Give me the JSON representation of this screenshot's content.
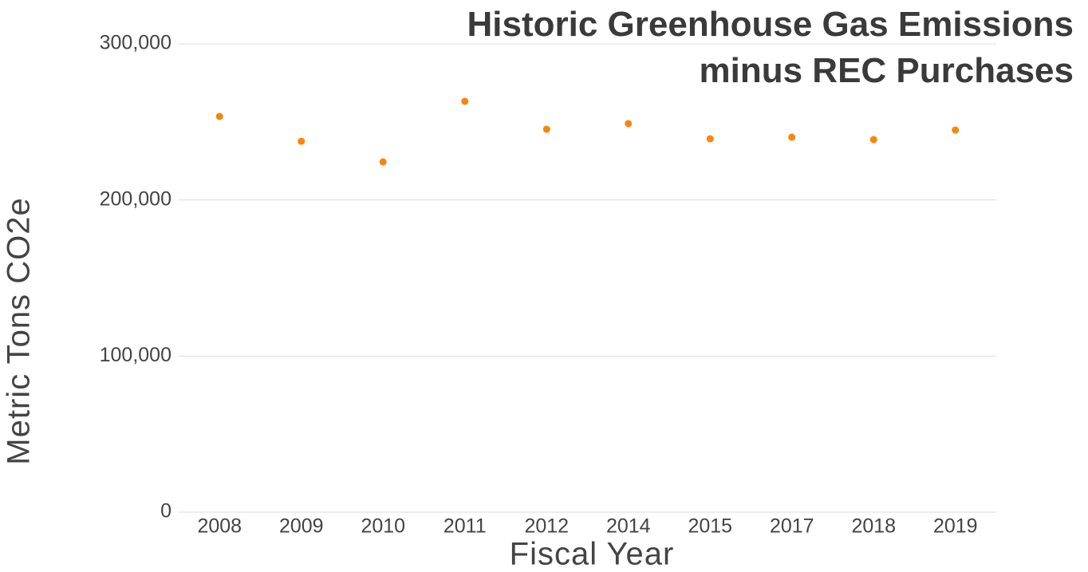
{
  "chart_data": {
    "type": "line",
    "title": "Historic Greenhouse Gas Emissions minus REC Purchases",
    "x_label": "Fiscal Year",
    "y_label": "Metric Tons CO2e",
    "categories": [
      "2008",
      "2009",
      "2010",
      "2011",
      "2012",
      "2014",
      "2015",
      "2017",
      "2018",
      "2019"
    ],
    "series": [
      {
        "name": "Emissions",
        "color": "#f7860b",
        "values": [
          253500,
          237600,
          224400,
          263200,
          245300,
          248900,
          239200,
          240200,
          238700,
          244800
        ]
      }
    ],
    "ylim": [
      0,
      300000
    ],
    "yticks": [
      0,
      {
        "value": 100000,
        "label": "100,000"
      },
      {
        "value": 200000,
        "label": "200,000"
      },
      {
        "value": 300000,
        "label": "300,000"
      }
    ],
    "grid": true
  }
}
